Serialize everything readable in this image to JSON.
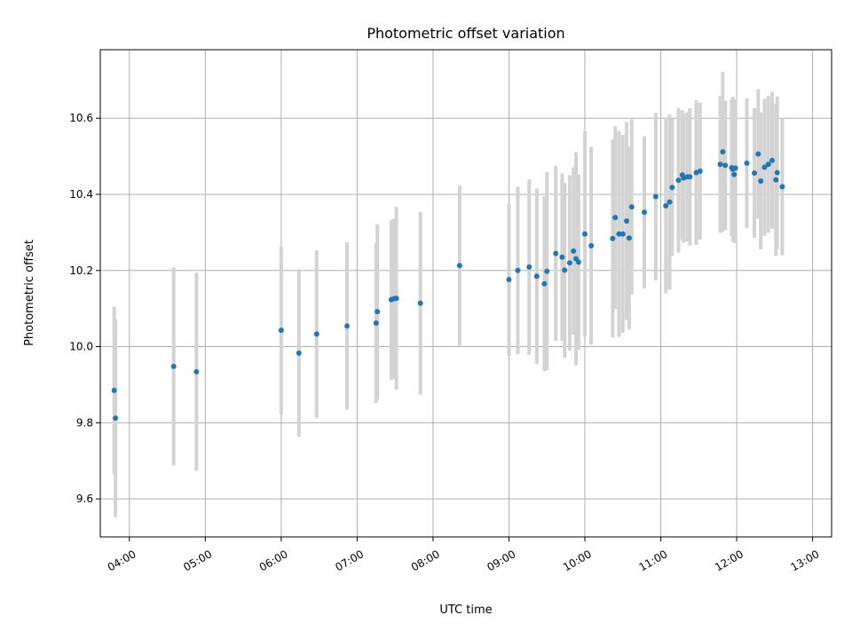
{
  "chart_data": {
    "type": "scatter",
    "title": "Photometric offset variation",
    "xlabel": "UTC time",
    "ylabel": "Photometric offset",
    "xlim": [
      "03:37",
      "13:15"
    ],
    "ylim": [
      9.5,
      10.78
    ],
    "grid": true,
    "x_ticks": [
      "04:00",
      "05:00",
      "06:00",
      "07:00",
      "08:00",
      "09:00",
      "10:00",
      "11:00",
      "12:00",
      "13:00"
    ],
    "y_ticks": [
      9.6,
      9.8,
      10.0,
      10.2,
      10.4,
      10.6
    ],
    "colors": {
      "points": "#1f77b4",
      "error_bars": "#d3d3d3",
      "grid": "#b0b0b0"
    },
    "series": [
      {
        "x": [
          "03:48",
          "03:49",
          "04:35",
          "04:53",
          "06:00",
          "06:14",
          "06:28",
          "06:52",
          "07:15",
          "07:16",
          "07:27",
          "07:29",
          "07:31",
          "07:50",
          "08:21",
          "09:00",
          "09:07",
          "09:16",
          "09:22",
          "09:28",
          "09:30",
          "09:37",
          "09:42",
          "09:44",
          "09:48",
          "09:51",
          "09:53",
          "09:55",
          "10:00",
          "10:05",
          "10:22",
          "10:24",
          "10:27",
          "10:30",
          "10:33",
          "10:35",
          "10:37",
          "10:47",
          "10:56",
          "11:04",
          "11:07",
          "11:09",
          "11:14",
          "11:17",
          "11:18",
          "11:21",
          "11:23",
          "11:28",
          "11:31",
          "11:47",
          "11:49",
          "11:51",
          "11:56",
          "11:57",
          "11:58",
          "11:59",
          "12:08",
          "12:14",
          "12:17",
          "12:19",
          "12:22",
          "12:25",
          "12:28",
          "12:31",
          "12:32",
          "12:36"
        ],
        "y": [
          9.885,
          9.812,
          9.948,
          9.934,
          10.043,
          9.983,
          10.033,
          10.054,
          10.062,
          10.092,
          10.123,
          10.126,
          10.127,
          10.114,
          10.213,
          10.176,
          10.2,
          10.209,
          10.185,
          10.165,
          10.198,
          10.245,
          10.235,
          10.201,
          10.22,
          10.251,
          10.231,
          10.222,
          10.296,
          10.265,
          10.284,
          10.339,
          10.296,
          10.296,
          10.33,
          10.285,
          10.367,
          10.353,
          10.394,
          10.37,
          10.38,
          10.418,
          10.437,
          10.451,
          10.443,
          10.446,
          10.446,
          10.457,
          10.461,
          10.479,
          10.512,
          10.476,
          10.47,
          10.466,
          10.452,
          10.469,
          10.482,
          10.456,
          10.506,
          10.435,
          10.471,
          10.479,
          10.489,
          10.438,
          10.457,
          10.42
        ],
        "yerr": [
          0.22,
          0.26,
          0.26,
          0.26,
          0.22,
          0.22,
          0.22,
          0.22,
          0.21,
          0.23,
          0.21,
          0.21,
          0.24,
          0.24,
          0.21,
          0.2,
          0.22,
          0.23,
          0.23,
          0.23,
          0.26,
          0.23,
          0.22,
          0.23,
          0.23,
          0.22,
          0.28,
          0.23,
          0.27,
          0.26,
          0.26,
          0.24,
          0.27,
          0.26,
          0.26,
          0.24,
          0.23,
          0.2,
          0.22,
          0.23,
          0.23,
          0.18,
          0.19,
          0.17,
          0.17,
          0.17,
          0.18,
          0.19,
          0.18,
          0.18,
          0.21,
          0.17,
          0.18,
          0.19,
          0.18,
          0.18,
          0.17,
          0.17,
          0.17,
          0.18,
          0.18,
          0.18,
          0.18,
          0.2,
          0.2,
          0.18
        ]
      }
    ]
  }
}
